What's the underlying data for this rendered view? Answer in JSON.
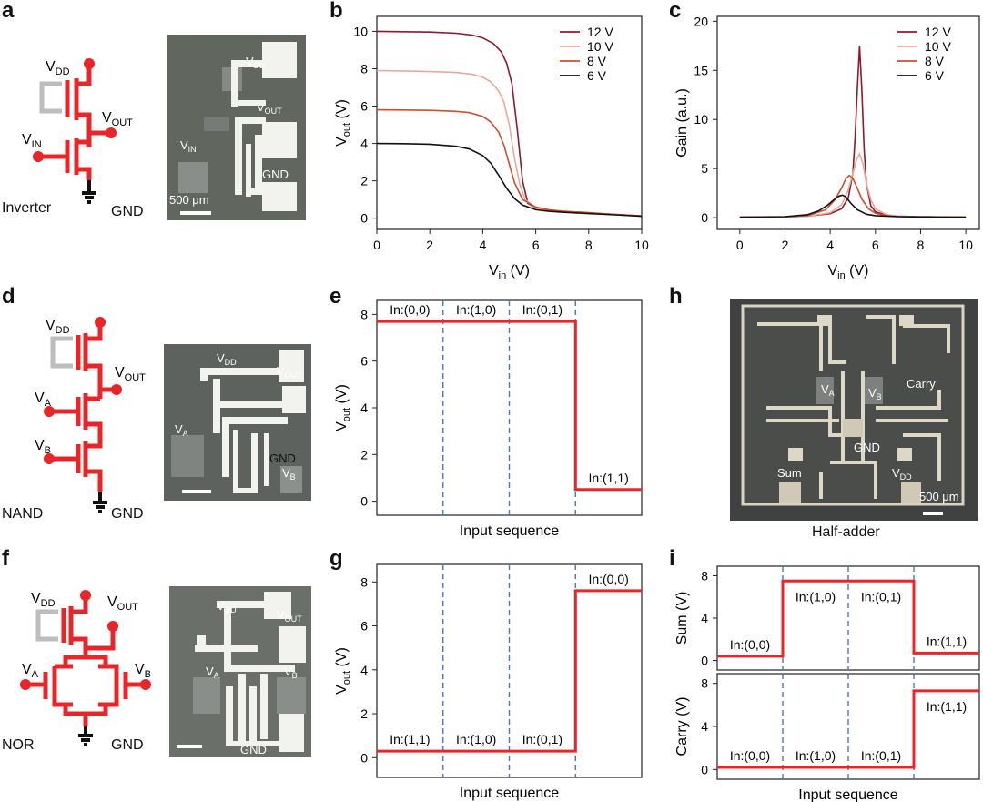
{
  "panels": {
    "a": "a",
    "b": "b",
    "c": "c",
    "d": "d",
    "e": "e",
    "f": "f",
    "g": "g",
    "h": "h",
    "i": "i"
  },
  "circuits": {
    "inverter": {
      "name": "Inverter",
      "gnd": "GND",
      "vdd": "V",
      "vdd_sub": "DD",
      "vout": "V",
      "vout_sub": "OUT",
      "vin": "V",
      "vin_sub": "IN"
    },
    "nand": {
      "name": "NAND",
      "gnd": "GND",
      "vdd": "V",
      "vdd_sub": "DD",
      "vout": "V",
      "vout_sub": "OUT",
      "va": "V",
      "va_sub": "A",
      "vb": "V",
      "vb_sub": "B"
    },
    "nor": {
      "name": "NOR",
      "gnd": "GND",
      "vdd": "V",
      "vdd_sub": "DD",
      "vout": "V",
      "vout_sub": "OUT",
      "va": "V",
      "va_sub": "A",
      "vb": "V",
      "vb_sub": "B"
    }
  },
  "photos": {
    "inverter": {
      "vdd": "V",
      "vdd_sub": "DD",
      "vout": "V",
      "vout_sub": "OUT",
      "vin": "V",
      "vin_sub": "IN",
      "gnd": "GND",
      "scale": "500 μm"
    },
    "nand": {
      "vdd": "V",
      "vdd_sub": "DD",
      "vout": "V",
      "vout_sub": "OUT",
      "va": "V",
      "va_sub": "A",
      "vb": "V",
      "vb_sub": "B",
      "gnd": "GND"
    },
    "nor": {
      "vdd": "V",
      "vdd_sub": "DD",
      "vout": "V",
      "vout_sub": "OUT",
      "va": "V",
      "va_sub": "A",
      "vb": "V",
      "vb_sub": "B",
      "gnd": "GND"
    },
    "halfadder": {
      "va": "V",
      "va_sub": "A",
      "vb": "V",
      "vb_sub": "B",
      "carry": "Carry",
      "gnd": "GND",
      "sum": "Sum",
      "vdd": "V",
      "vdd_sub": "DD",
      "scale": "500 μm",
      "caption": "Half-adder"
    }
  },
  "colors": {
    "v12": "#8b1a2b",
    "v10": "#e8a99a",
    "v8": "#c9502f",
    "v6": "#111111",
    "signal": "#e8262a",
    "divider": "#4a78c2",
    "circuit": "#e8262a",
    "circuit_gray": "#bdbdbd"
  },
  "chart_data": [
    {
      "id": "b",
      "type": "line",
      "xlabel": "V",
      "xlabel_sub": "in",
      "xlabel_unit": " (V)",
      "ylabel": "V",
      "ylabel_sub": "out",
      "ylabel_unit": " (V)",
      "xlim": [
        0,
        10
      ],
      "ylim": [
        -0.6,
        10.8
      ],
      "xticks": [
        0,
        2,
        4,
        6,
        8,
        10
      ],
      "yticks": [
        0,
        2,
        4,
        6,
        8,
        10
      ],
      "legend_position": "top-right",
      "series": [
        {
          "name": "12 V",
          "color": "#8b1a2b",
          "x": [
            0,
            1,
            2,
            3,
            3.6,
            4,
            4.4,
            4.7,
            4.9,
            5.1,
            5.3,
            5.5,
            5.7,
            6,
            6.5,
            7,
            8,
            9,
            10
          ],
          "y": [
            10.0,
            9.98,
            9.96,
            9.9,
            9.8,
            9.65,
            9.35,
            8.9,
            8.3,
            7.2,
            4.8,
            2.0,
            0.8,
            0.55,
            0.42,
            0.35,
            0.27,
            0.2,
            0.12
          ]
        },
        {
          "name": "10 V",
          "color": "#e8a99a",
          "x": [
            0,
            1,
            2,
            3,
            3.6,
            4,
            4.3,
            4.6,
            4.8,
            5.0,
            5.2,
            5.4,
            5.6,
            6,
            6.5,
            7,
            8,
            9,
            10
          ],
          "y": [
            7.9,
            7.88,
            7.85,
            7.8,
            7.7,
            7.55,
            7.3,
            6.8,
            6.2,
            5.0,
            3.2,
            1.8,
            1.0,
            0.55,
            0.42,
            0.36,
            0.28,
            0.2,
            0.12
          ]
        },
        {
          "name": "8 V",
          "color": "#c9502f",
          "x": [
            0,
            1,
            2,
            3,
            3.5,
            4,
            4.3,
            4.6,
            4.8,
            5.0,
            5.2,
            5.5,
            6,
            6.5,
            7,
            8,
            9,
            10
          ],
          "y": [
            5.8,
            5.79,
            5.77,
            5.72,
            5.65,
            5.45,
            5.15,
            4.6,
            3.9,
            2.9,
            1.9,
            1.0,
            0.6,
            0.45,
            0.38,
            0.3,
            0.2,
            0.12
          ]
        },
        {
          "name": "6 V",
          "color": "#111111",
          "x": [
            0,
            1,
            2,
            3,
            3.5,
            4,
            4.3,
            4.6,
            4.9,
            5.2,
            5.5,
            6,
            6.5,
            7,
            8,
            9,
            10
          ],
          "y": [
            4.0,
            3.99,
            3.96,
            3.85,
            3.7,
            3.35,
            2.95,
            2.3,
            1.6,
            1.05,
            0.7,
            0.45,
            0.37,
            0.32,
            0.25,
            0.18,
            0.1
          ]
        }
      ]
    },
    {
      "id": "c",
      "type": "line",
      "xlabel": "V",
      "xlabel_sub": "in",
      "xlabel_unit": " (V)",
      "ylabel": "Gain (a.u.)",
      "ylabel_sub": "",
      "ylabel_unit": "",
      "xlim": [
        -1,
        10.6
      ],
      "ylim": [
        -1.2,
        20.5
      ],
      "xticks": [
        0,
        2,
        4,
        6,
        8,
        10
      ],
      "yticks": [
        0,
        5,
        10,
        15,
        20
      ],
      "legend_position": "top-right",
      "series": [
        {
          "name": "12 V",
          "color": "#8b1a2b",
          "x": [
            0,
            2,
            3,
            4,
            4.5,
            4.8,
            5.0,
            5.1,
            5.2,
            5.3,
            5.4,
            5.5,
            5.6,
            5.8,
            6.0,
            6.5,
            7,
            8,
            10
          ],
          "y": [
            0.05,
            0.08,
            0.15,
            0.4,
            0.9,
            2.0,
            4.5,
            8.0,
            13.0,
            17.5,
            13.0,
            7.0,
            3.5,
            1.2,
            0.6,
            0.25,
            0.15,
            0.08,
            0.05
          ]
        },
        {
          "name": "10 V",
          "color": "#e8a99a",
          "x": [
            0,
            2,
            3,
            4,
            4.5,
            4.8,
            5.0,
            5.15,
            5.3,
            5.45,
            5.6,
            5.8,
            6.0,
            6.5,
            7,
            8,
            10
          ],
          "y": [
            0.05,
            0.08,
            0.15,
            0.5,
            1.3,
            2.8,
            4.5,
            5.8,
            6.5,
            5.5,
            3.5,
            1.8,
            0.9,
            0.3,
            0.15,
            0.08,
            0.05
          ]
        },
        {
          "name": "8 V",
          "color": "#c9502f",
          "x": [
            0,
            2,
            3,
            3.8,
            4.2,
            4.5,
            4.7,
            4.85,
            5.0,
            5.2,
            5.4,
            5.7,
            6.0,
            6.5,
            7,
            8,
            10
          ],
          "y": [
            0.05,
            0.08,
            0.2,
            0.8,
            1.8,
            3.0,
            4.0,
            4.3,
            4.0,
            3.0,
            1.9,
            0.9,
            0.45,
            0.2,
            0.12,
            0.08,
            0.05
          ]
        },
        {
          "name": "6 V",
          "color": "#111111",
          "x": [
            0,
            2,
            3,
            3.5,
            3.9,
            4.2,
            4.4,
            4.55,
            4.7,
            4.9,
            5.2,
            5.6,
            6.0,
            7,
            8,
            10
          ],
          "y": [
            0.05,
            0.1,
            0.3,
            0.7,
            1.3,
            1.9,
            2.2,
            2.3,
            2.1,
            1.5,
            0.8,
            0.35,
            0.2,
            0.1,
            0.07,
            0.05
          ]
        }
      ]
    },
    {
      "id": "e",
      "type": "line",
      "xlabel": "Input sequence",
      "ylabel": "V",
      "ylabel_sub": "out",
      "ylabel_unit": " (V)",
      "xlim": [
        0,
        4
      ],
      "ylim": [
        -0.6,
        8.6
      ],
      "yticks": [
        0,
        2,
        4,
        6,
        8
      ],
      "dividers": [
        1,
        2,
        3
      ],
      "levels": [
        7.7,
        7.7,
        7.7,
        0.5
      ],
      "annotations": [
        "In:(0,0)",
        "In:(1,0)",
        "In:(0,1)",
        "In:(1,1)"
      ]
    },
    {
      "id": "g",
      "type": "line",
      "xlabel": "Input sequence",
      "ylabel": "V",
      "ylabel_sub": "out",
      "ylabel_unit": " (V)",
      "xlim": [
        0,
        4
      ],
      "ylim": [
        -0.9,
        8.8
      ],
      "yticks": [
        0,
        2,
        4,
        6,
        8
      ],
      "dividers": [
        1,
        2,
        3
      ],
      "levels": [
        0.3,
        0.3,
        0.3,
        7.6
      ],
      "annotations": [
        "In:(1,1)",
        "In:(1,0)",
        "In:(0,1)",
        "In:(0,0)"
      ]
    },
    {
      "id": "i_sum",
      "type": "line",
      "xlabel": "",
      "ylabel": "Sum (V)",
      "ylabel_sub": "",
      "ylabel_unit": "",
      "xlim": [
        0,
        4
      ],
      "ylim": [
        -0.9,
        8.9
      ],
      "yticks": [
        0,
        4,
        8
      ],
      "dividers": [
        1,
        2,
        3
      ],
      "levels": [
        0.4,
        7.5,
        7.5,
        0.7
      ],
      "annotations": [
        "In:(0,0)",
        "In:(1,0)",
        "In:(0,1)",
        "In:(1,1)"
      ]
    },
    {
      "id": "i_carry",
      "type": "line",
      "xlabel": "Input sequence",
      "ylabel": "Carry (V)",
      "ylabel_sub": "",
      "ylabel_unit": "",
      "xlim": [
        0,
        4
      ],
      "ylim": [
        -0.9,
        8.9
      ],
      "yticks": [
        0,
        4,
        8
      ],
      "dividers": [
        1,
        2,
        3
      ],
      "levels": [
        0.2,
        0.2,
        0.2,
        7.3
      ],
      "annotations": [
        "In:(0,0)",
        "In:(1,0)",
        "In:(0,1)",
        "In:(1,1)"
      ]
    }
  ]
}
